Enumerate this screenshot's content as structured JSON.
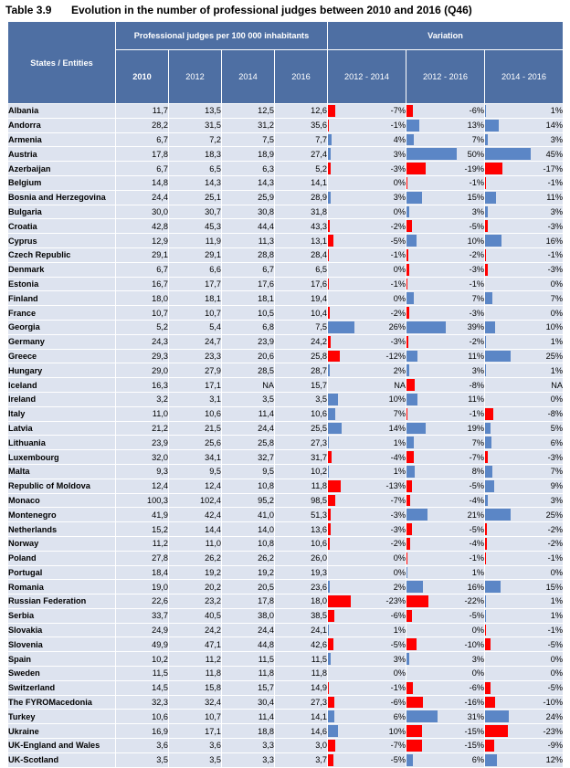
{
  "title": {
    "number": "Table 3.9",
    "text": "Evolution in the number of professional judges between 2010 and 2016 (Q46)"
  },
  "header": {
    "states_label": "States / Entities",
    "group_judges": "Professional judges per 100 000 inhabitants",
    "group_variation": "Variation",
    "years": [
      "2010",
      "2012",
      "2014",
      "2016"
    ],
    "periods": [
      "2012 - 2014",
      "2012 - 2016",
      "2014 - 2016"
    ]
  },
  "colors": {
    "header_bg": "#4e6fa3",
    "row_bg": "#dde3ef",
    "positive_bar": "#5b86c6",
    "negative_bar": "#ff0000"
  },
  "rows": [
    {
      "name": "Albania",
      "vals": [
        "11,7",
        "13,5",
        "12,5",
        "12,6"
      ],
      "var": [
        "-7%",
        "-6%",
        "1%"
      ]
    },
    {
      "name": "Andorra",
      "vals": [
        "28,2",
        "31,5",
        "31,2",
        "35,6"
      ],
      "var": [
        "-1%",
        "13%",
        "14%"
      ]
    },
    {
      "name": "Armenia",
      "vals": [
        "6,7",
        "7,2",
        "7,5",
        "7,7"
      ],
      "var": [
        "4%",
        "7%",
        "3%"
      ]
    },
    {
      "name": "Austria",
      "vals": [
        "17,8",
        "18,3",
        "18,9",
        "27,4"
      ],
      "var": [
        "3%",
        "50%",
        "45%"
      ]
    },
    {
      "name": "Azerbaijan",
      "vals": [
        "6,7",
        "6,5",
        "6,3",
        "5,2"
      ],
      "var": [
        "-3%",
        "-19%",
        "-17%"
      ]
    },
    {
      "name": "Belgium",
      "vals": [
        "14,8",
        "14,3",
        "14,3",
        "14,1"
      ],
      "var": [
        "0%",
        "-1%",
        "-1%"
      ]
    },
    {
      "name": "Bosnia and Herzegovina",
      "vals": [
        "24,4",
        "25,1",
        "25,9",
        "28,9"
      ],
      "var": [
        "3%",
        "15%",
        "11%"
      ]
    },
    {
      "name": "Bulgaria",
      "vals": [
        "30,0",
        "30,7",
        "30,8",
        "31,8"
      ],
      "var": [
        "0%",
        "3%",
        "3%"
      ]
    },
    {
      "name": "Croatia",
      "vals": [
        "42,8",
        "45,3",
        "44,4",
        "43,3"
      ],
      "var": [
        "-2%",
        "-5%",
        "-3%"
      ]
    },
    {
      "name": "Cyprus",
      "vals": [
        "12,9",
        "11,9",
        "11,3",
        "13,1"
      ],
      "var": [
        "-5%",
        "10%",
        "16%"
      ]
    },
    {
      "name": "Czech Republic",
      "vals": [
        "29,1",
        "29,1",
        "28,8",
        "28,4"
      ],
      "var": [
        "-1%",
        "-2%",
        "-1%"
      ]
    },
    {
      "name": "Denmark",
      "vals": [
        "6,7",
        "6,6",
        "6,7",
        "6,5"
      ],
      "var": [
        "0%",
        "-3%",
        "-3%"
      ]
    },
    {
      "name": "Estonia",
      "vals": [
        "16,7",
        "17,7",
        "17,6",
        "17,6"
      ],
      "var": [
        "-1%",
        "-1%",
        "0%"
      ]
    },
    {
      "name": "Finland",
      "vals": [
        "18,0",
        "18,1",
        "18,1",
        "19,4"
      ],
      "var": [
        "0%",
        "7%",
        "7%"
      ]
    },
    {
      "name": "France",
      "vals": [
        "10,7",
        "10,7",
        "10,5",
        "10,4"
      ],
      "var": [
        "-2%",
        "-3%",
        "0%"
      ]
    },
    {
      "name": "Georgia",
      "vals": [
        "5,2",
        "5,4",
        "6,8",
        "7,5"
      ],
      "var": [
        "26%",
        "39%",
        "10%"
      ]
    },
    {
      "name": "Germany",
      "vals": [
        "24,3",
        "24,7",
        "23,9",
        "24,2"
      ],
      "var": [
        "-3%",
        "-2%",
        "1%"
      ]
    },
    {
      "name": "Greece",
      "vals": [
        "29,3",
        "23,3",
        "20,6",
        "25,8"
      ],
      "var": [
        "-12%",
        "11%",
        "25%"
      ]
    },
    {
      "name": "Hungary",
      "vals": [
        "29,0",
        "27,9",
        "28,5",
        "28,7"
      ],
      "var": [
        "2%",
        "3%",
        "1%"
      ]
    },
    {
      "name": "Iceland",
      "vals": [
        "16,3",
        "17,1",
        "NA",
        "15,7"
      ],
      "var": [
        "NA",
        "-8%",
        "NA"
      ]
    },
    {
      "name": "Ireland",
      "vals": [
        "3,2",
        "3,1",
        "3,5",
        "3,5"
      ],
      "var": [
        "10%",
        "11%",
        "0%"
      ]
    },
    {
      "name": "Italy",
      "vals": [
        "11,0",
        "10,6",
        "11,4",
        "10,6"
      ],
      "var": [
        "7%",
        "-1%",
        "-8%"
      ]
    },
    {
      "name": "Latvia",
      "vals": [
        "21,2",
        "21,5",
        "24,4",
        "25,5"
      ],
      "var": [
        "14%",
        "19%",
        "5%"
      ]
    },
    {
      "name": "Lithuania",
      "vals": [
        "23,9",
        "25,6",
        "25,8",
        "27,3"
      ],
      "var": [
        "1%",
        "7%",
        "6%"
      ]
    },
    {
      "name": "Luxembourg",
      "vals": [
        "32,0",
        "34,1",
        "32,7",
        "31,7"
      ],
      "var": [
        "-4%",
        "-7%",
        "-3%"
      ]
    },
    {
      "name": "Malta",
      "vals": [
        "9,3",
        "9,5",
        "9,5",
        "10,2"
      ],
      "var": [
        "1%",
        "8%",
        "7%"
      ]
    },
    {
      "name": "Republic of Moldova",
      "vals": [
        "12,4",
        "12,4",
        "10,8",
        "11,8"
      ],
      "var": [
        "-13%",
        "-5%",
        "9%"
      ]
    },
    {
      "name": "Monaco",
      "vals": [
        "100,3",
        "102,4",
        "95,2",
        "98,5"
      ],
      "var": [
        "-7%",
        "-4%",
        "3%"
      ]
    },
    {
      "name": "Montenegro",
      "vals": [
        "41,9",
        "42,4",
        "41,0",
        "51,3"
      ],
      "var": [
        "-3%",
        "21%",
        "25%"
      ]
    },
    {
      "name": "Netherlands",
      "vals": [
        "15,2",
        "14,4",
        "14,0",
        "13,6"
      ],
      "var": [
        "-3%",
        "-5%",
        "-2%"
      ]
    },
    {
      "name": "Norway",
      "vals": [
        "11,2",
        "11,0",
        "10,8",
        "10,6"
      ],
      "var": [
        "-2%",
        "-4%",
        "-2%"
      ]
    },
    {
      "name": "Poland",
      "vals": [
        "27,8",
        "26,2",
        "26,2",
        "26,0"
      ],
      "var": [
        "0%",
        "-1%",
        "-1%"
      ]
    },
    {
      "name": "Portugal",
      "vals": [
        "18,4",
        "19,2",
        "19,2",
        "19,3"
      ],
      "var": [
        "0%",
        "1%",
        "0%"
      ]
    },
    {
      "name": "Romania",
      "vals": [
        "19,0",
        "20,2",
        "20,5",
        "23,6"
      ],
      "var": [
        "2%",
        "16%",
        "15%"
      ]
    },
    {
      "name": "Russian Federation",
      "vals": [
        "22,6",
        "23,2",
        "17,8",
        "18,0"
      ],
      "var": [
        "-23%",
        "-22%",
        "1%"
      ]
    },
    {
      "name": "Serbia",
      "vals": [
        "33,7",
        "40,5",
        "38,0",
        "38,5"
      ],
      "var": [
        "-6%",
        "-5%",
        "1%"
      ]
    },
    {
      "name": "Slovakia",
      "vals": [
        "24,9",
        "24,2",
        "24,4",
        "24,1"
      ],
      "var": [
        "1%",
        "0%",
        "-1%"
      ]
    },
    {
      "name": "Slovenia",
      "vals": [
        "49,9",
        "47,1",
        "44,8",
        "42,6"
      ],
      "var": [
        "-5%",
        "-10%",
        "-5%"
      ]
    },
    {
      "name": "Spain",
      "vals": [
        "10,2",
        "11,2",
        "11,5",
        "11,5"
      ],
      "var": [
        "3%",
        "3%",
        "0%"
      ]
    },
    {
      "name": "Sweden",
      "vals": [
        "11,5",
        "11,8",
        "11,8",
        "11,8"
      ],
      "var": [
        "0%",
        "0%",
        "0%"
      ]
    },
    {
      "name": "Switzerland",
      "vals": [
        "14,5",
        "15,8",
        "15,7",
        "14,9"
      ],
      "var": [
        "-1%",
        "-6%",
        "-5%"
      ]
    },
    {
      "name": "The FYROMacedonia",
      "vals": [
        "32,3",
        "32,4",
        "30,4",
        "27,3"
      ],
      "var": [
        "-6%",
        "-16%",
        "-10%"
      ]
    },
    {
      "name": "Turkey",
      "vals": [
        "10,6",
        "10,7",
        "11,4",
        "14,1"
      ],
      "var": [
        "6%",
        "31%",
        "24%"
      ]
    },
    {
      "name": "Ukraine",
      "vals": [
        "16,9",
        "17,1",
        "18,8",
        "14,6"
      ],
      "var": [
        "10%",
        "-15%",
        "-23%"
      ]
    },
    {
      "name": "UK-England and Wales",
      "vals": [
        "3,6",
        "3,6",
        "3,3",
        "3,0"
      ],
      "var": [
        "-7%",
        "-15%",
        "-9%"
      ]
    },
    {
      "name": "UK-Scotland",
      "vals": [
        "3,5",
        "3,5",
        "3,3",
        "3,7"
      ],
      "var": [
        "-5%",
        "6%",
        "12%"
      ]
    }
  ]
}
